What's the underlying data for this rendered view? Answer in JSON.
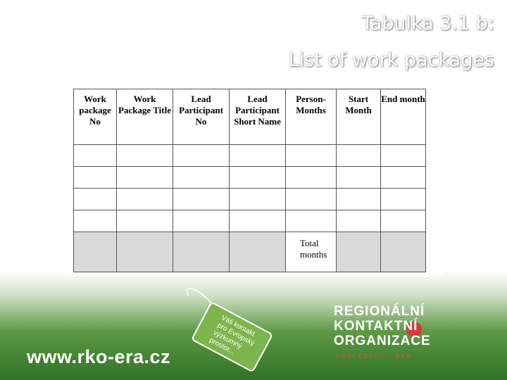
{
  "header": {
    "title_lines": [
      "Tabulka 3.1 b:",
      "List of work packages"
    ]
  },
  "table": {
    "columns": [
      "Work package No",
      "Work Package Title",
      "Lead Participant No",
      "Lead Participant Short Name",
      "Person-Months",
      "Start Month",
      "End month"
    ],
    "total_label": "Total months"
  },
  "footer": {
    "url": "www.rko-era.cz",
    "tag_lines": [
      "Váš kontakt",
      "pro Evropský",
      "výzkumný prostor..."
    ],
    "logo_lines": [
      "REGIONÁLNÍ",
      "KONTAKTNÍ",
      "ORGANIZACE"
    ],
    "logo_subtitle": "JIŽNÍ ČECHY – ERA"
  }
}
